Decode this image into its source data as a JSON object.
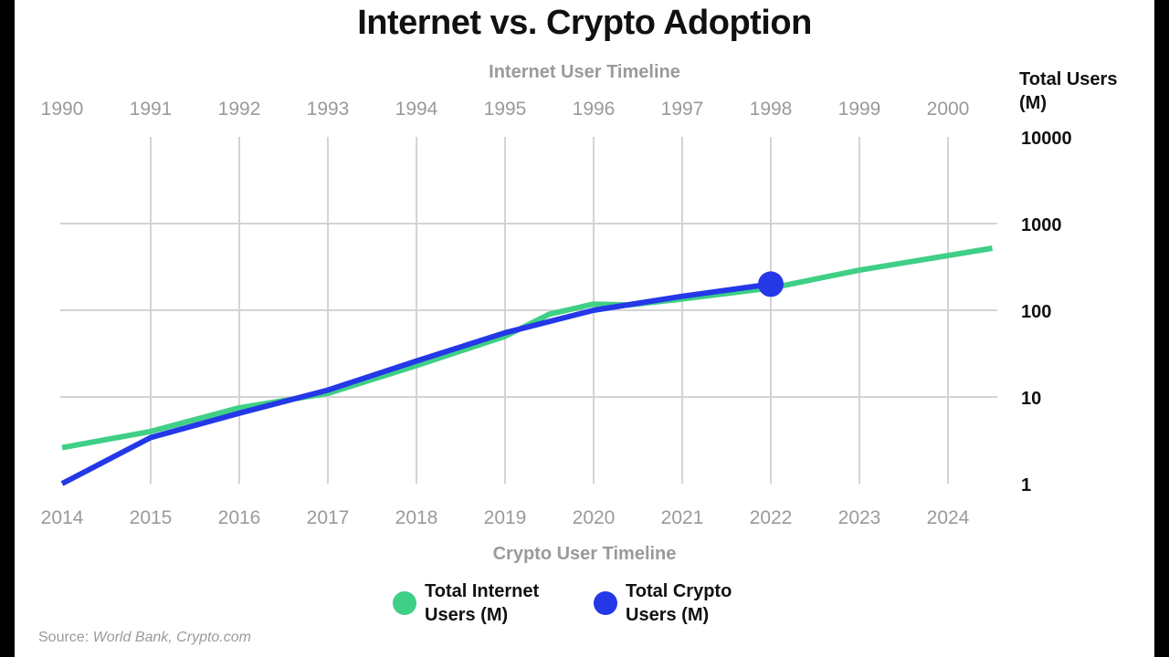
{
  "title": "Internet vs. Crypto Adoption",
  "top_axis_title": "Internet User Timeline",
  "bottom_axis_title": "Crypto User Timeline",
  "y_axis_title_line1": "Total Users",
  "y_axis_title_line2": "(M)",
  "legend": [
    {
      "label": "Total Internet Users (M)",
      "color": "#3fcf86"
    },
    {
      "label": "Total Crypto Users (M)",
      "color": "#2438e8"
    }
  ],
  "source_prefix": "Source:",
  "source_names": "World Bank, Crypto.com",
  "colors": {
    "internet": "#3fcf86",
    "crypto": "#2438e8",
    "grid": "#d4d4d4",
    "tick": "#9a9a9a"
  },
  "chart_data": {
    "type": "line",
    "y_scale": "log",
    "ylim": [
      1,
      10000
    ],
    "y_ticks": [
      10000,
      1000,
      100,
      10,
      1
    ],
    "top_x_ticks": [
      "1990",
      "1991",
      "1992",
      "1993",
      "1994",
      "1995",
      "1996",
      "1997",
      "1998",
      "1999",
      "2000"
    ],
    "bottom_x_ticks": [
      "2014",
      "2015",
      "2016",
      "2017",
      "2018",
      "2019",
      "2020",
      "2021",
      "2022",
      "2023",
      "2024"
    ],
    "grid": true,
    "legend_position": "bottom",
    "series": [
      {
        "name": "Total Internet Users (M)",
        "axis": "top",
        "x": [
          1990,
          1991,
          1992,
          1993,
          1994,
          1995,
          1995.5,
          1996,
          1996.4,
          1997,
          1998,
          1999,
          2000.5
        ],
        "values": [
          2.6,
          4,
          7.5,
          11,
          23,
          50,
          90,
          118,
          115,
          135,
          180,
          290,
          520
        ]
      },
      {
        "name": "Total Crypto Users (M)",
        "axis": "bottom",
        "x": [
          2014,
          2015,
          2016,
          2017,
          2018,
          2019,
          2020,
          2021,
          2022
        ],
        "values": [
          1,
          3.4,
          6.5,
          12,
          26,
          55,
          100,
          145,
          200
        ]
      }
    ],
    "highlight_point": {
      "series": "Total Crypto Users (M)",
      "x": 2022,
      "y": 200
    }
  }
}
